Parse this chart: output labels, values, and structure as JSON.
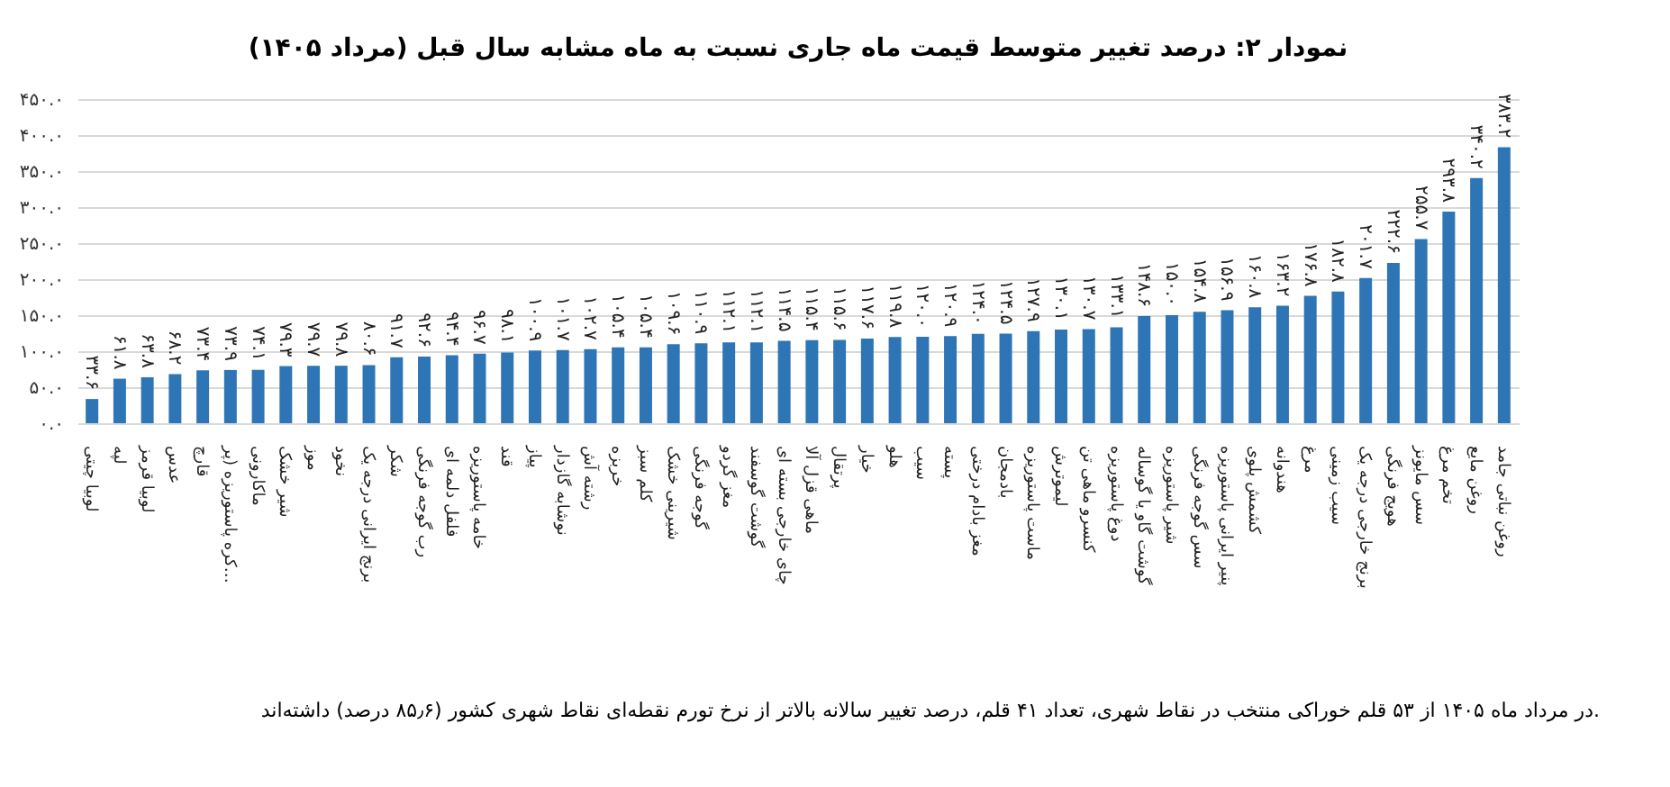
{
  "chart_data": {
    "type": "bar",
    "title": "نمودار ۲: درصد تغییر متوسط قیمت ماه جاری نسبت به ماه مشابه سال قبل (مرداد ۱۴۰۵)",
    "categories": [
      "لوبیا چیتی",
      "لپه",
      "لوبیا قرمز",
      "عدس",
      "قارچ",
      "کره پاستوریزه (پر…",
      "ماکارونی",
      "شیر خشک",
      "موز",
      "نخود",
      "برنج ایرانی درجه یک",
      "شکر",
      "رب گوجه فرنگی",
      "فلفل دلمه ای",
      "خامه پاستوریزه",
      "قند",
      "پیاز",
      "نوشابه گازدار",
      "رشته آش",
      "خربزه",
      "کلم سبز",
      "شیرینی خشک",
      "گوجه فرنگی",
      "مغز گردو",
      "گوشت گوسفند",
      "چای خارجی بسته ای",
      "ماهی قزل آلا",
      "پرتقال",
      "خیار",
      "هلو",
      "سیب",
      "پسته",
      "مغز بادام درختی",
      "بادمجان",
      "ماست پاستوریزه",
      "لیموترش",
      "کنسرو ماهی تن",
      "دوغ پاستوریزه",
      "گوشت گاو یا گوساله",
      "شیر پاستوریزه",
      "سس گوجه فرنگی",
      "پنیر ایرانی پاستوریزه",
      "کشمش پلوی",
      "هندوانه",
      "مرغ",
      "سیب زمینی",
      "برنج خارجی درجه یک",
      "هویج فرنگی",
      "سس مایونز",
      "تخم مرغ",
      "روغن مایع",
      "روغن نباتی جامد"
    ],
    "values": [
      33.6,
      61.8,
      63.8,
      68.2,
      73.4,
      73.9,
      74.1,
      79.3,
      79.7,
      79.8,
      80.6,
      91.7,
      92.6,
      94.4,
      96.7,
      98.1,
      100.9,
      101.7,
      102.7,
      105.4,
      105.4,
      109.6,
      110.9,
      112.1,
      112.1,
      114.5,
      115.4,
      115.6,
      117.6,
      119.8,
      120.0,
      120.9,
      124.0,
      124.5,
      127.9,
      130.1,
      130.7,
      133.1,
      148.6,
      150.0,
      154.8,
      156.9,
      160.8,
      163.2,
      176.8,
      182.8,
      201.7,
      222.6,
      255.7,
      293.8,
      340.2,
      383.2
    ],
    "value_labels": [
      "۳۳.۶",
      "۶۱.۸",
      "۶۳.۸",
      "۶۸.۲",
      "۷۳.۴",
      "۷۳.۹",
      "۷۴.۱",
      "۷۹.۳",
      "۷۹.۷",
      "۷۹.۸",
      "۸۰.۶",
      "۹۱.۷",
      "۹۲.۶",
      "۹۴.۴",
      "۹۶.۷",
      "۹۸.۱",
      "۱۰۰.۹",
      "۱۰۱.۷",
      "۱۰۲.۷",
      "۱۰۵.۴",
      "۱۰۵.۴",
      "۱۰۹.۶",
      "۱۱۰.۹",
      "۱۱۲.۱",
      "۱۱۲.۱",
      "۱۱۴.۵",
      "۱۱۵.۴",
      "۱۱۵.۶",
      "۱۱۷.۶",
      "۱۱۹.۸",
      "۱۲۰.۰",
      "۱۲۰.۹",
      "۱۲۴.۰",
      "۱۲۴.۵",
      "۱۲۷.۹",
      "۱۳۰.۱",
      "۱۳۰.۷",
      "۱۳۳.۱",
      "۱۴۸.۶",
      "۱۵۰.۰",
      "۱۵۴.۸",
      "۱۵۶.۹",
      "۱۶۰.۸",
      "۱۶۳.۲",
      "۱۷۶.۸",
      "۱۸۲.۸",
      "۲۰۱.۷",
      "۲۲۲.۶",
      "۲۵۵.۷",
      "۲۹۳.۸",
      "۳۴۰.۲",
      "۳۸۳.۲"
    ],
    "color": "#2e75b6",
    "ylim": [
      0,
      450
    ],
    "yticks": [
      {
        "value": 0,
        "label": "۰.۰"
      },
      {
        "value": 50,
        "label": "۵۰.۰"
      },
      {
        "value": 100,
        "label": "۱۰۰.۰"
      },
      {
        "value": 150,
        "label": "۱۵۰.۰"
      },
      {
        "value": 200,
        "label": "۲۰۰.۰"
      },
      {
        "value": 250,
        "label": "۲۵۰.۰"
      },
      {
        "value": 300,
        "label": "۳۰۰.۰"
      },
      {
        "value": 350,
        "label": "۳۵۰.۰"
      },
      {
        "value": 400,
        "label": "۴۰۰.۰"
      },
      {
        "value": 450,
        "label": "۴۵۰.۰"
      }
    ],
    "grid": "y",
    "annotations": [
      "در مرداد ماه ۱۴۰۵ از ۵۳ قلم خوراکی منتخب در نقاط شهری، تعداد ۴۱ قلم، درصد تغییر سالانه بالاتر از نرخ تورم نقطه‌ای نقاط شهری کشور (۸۵٫۶ درصد) داشته‌اند."
    ]
  }
}
